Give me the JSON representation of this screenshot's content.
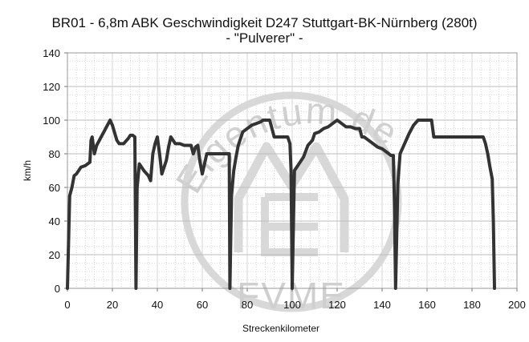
{
  "header": {
    "title": "BR01 - 6,8m ABK Geschwindigkeit D247 Stuttgart-BK-Nürnberg (280t)",
    "subtitle": "- \"Pulverer\" -"
  },
  "watermark": {
    "text_arc": "Eigentum der",
    "text_bottom": "FVME"
  },
  "chart_data": {
    "type": "line",
    "title": "BR01 - 6,8m ABK Geschwindigkeit D247 Stuttgart-BK-Nürnberg (280t)",
    "subtitle": "- \"Pulverer\" -",
    "xlabel": "Streckenkilometer",
    "ylabel": "km/h",
    "xlim": [
      0,
      200
    ],
    "ylim": [
      0,
      140
    ],
    "x_ticks": [
      0,
      20,
      40,
      60,
      80,
      100,
      120,
      140,
      160,
      180,
      200
    ],
    "y_ticks": [
      0,
      20,
      40,
      60,
      80,
      100,
      120,
      140
    ],
    "grid": true,
    "legend": "none",
    "series_color": "#333333",
    "series": [
      {
        "x": [
          0,
          1,
          2,
          3,
          4,
          6,
          8,
          10,
          10.5,
          11,
          11.5,
          12,
          13,
          15,
          17,
          19,
          20,
          22,
          23,
          25,
          27,
          28,
          29,
          30,
          30.5,
          31,
          32,
          34,
          36,
          37,
          38,
          39,
          40,
          41,
          42,
          44,
          45,
          46,
          48,
          50,
          52,
          54,
          55,
          56,
          57,
          58,
          59,
          60,
          62,
          64,
          68,
          72,
          72.3,
          73,
          74,
          75,
          76,
          78,
          80,
          82,
          84,
          86,
          87,
          88,
          90,
          92,
          94,
          96,
          98,
          99,
          99.5,
          100,
          101,
          103,
          105,
          107,
          109,
          110,
          112,
          114,
          116,
          118,
          120,
          122,
          123,
          124,
          126,
          128,
          130,
          131,
          132,
          134,
          136,
          138,
          140,
          142,
          144,
          145,
          145.5,
          146,
          147,
          148,
          150,
          152,
          154,
          156,
          158,
          160,
          162,
          163,
          164,
          170,
          180,
          185,
          186,
          187,
          188,
          189,
          189.5,
          190
        ],
        "y": [
          0,
          55,
          60,
          67,
          68,
          72,
          73,
          75,
          88,
          90,
          85,
          80,
          85,
          90,
          95,
          100,
          97,
          88,
          86,
          86,
          89,
          91,
          91,
          90,
          0,
          60,
          74,
          70,
          67,
          64,
          80,
          86,
          90,
          80,
          68,
          76,
          84,
          90,
          86,
          86,
          85,
          85,
          85,
          80,
          84,
          85,
          75,
          68,
          80,
          80,
          80,
          80,
          0,
          55,
          70,
          78,
          85,
          93,
          95,
          97,
          98,
          99,
          100,
          100,
          100,
          90,
          90,
          90,
          90,
          86,
          70,
          0,
          70,
          74,
          78,
          85,
          88,
          92,
          93,
          95,
          96,
          98,
          100,
          98,
          97,
          96,
          96,
          95,
          95,
          90,
          90,
          88,
          86,
          84,
          83,
          81,
          79,
          79,
          50,
          0,
          62,
          80,
          86,
          92,
          97,
          100,
          100,
          100,
          100,
          90,
          90,
          90,
          90,
          90,
          86,
          80,
          72,
          65,
          40,
          0
        ]
      }
    ]
  }
}
